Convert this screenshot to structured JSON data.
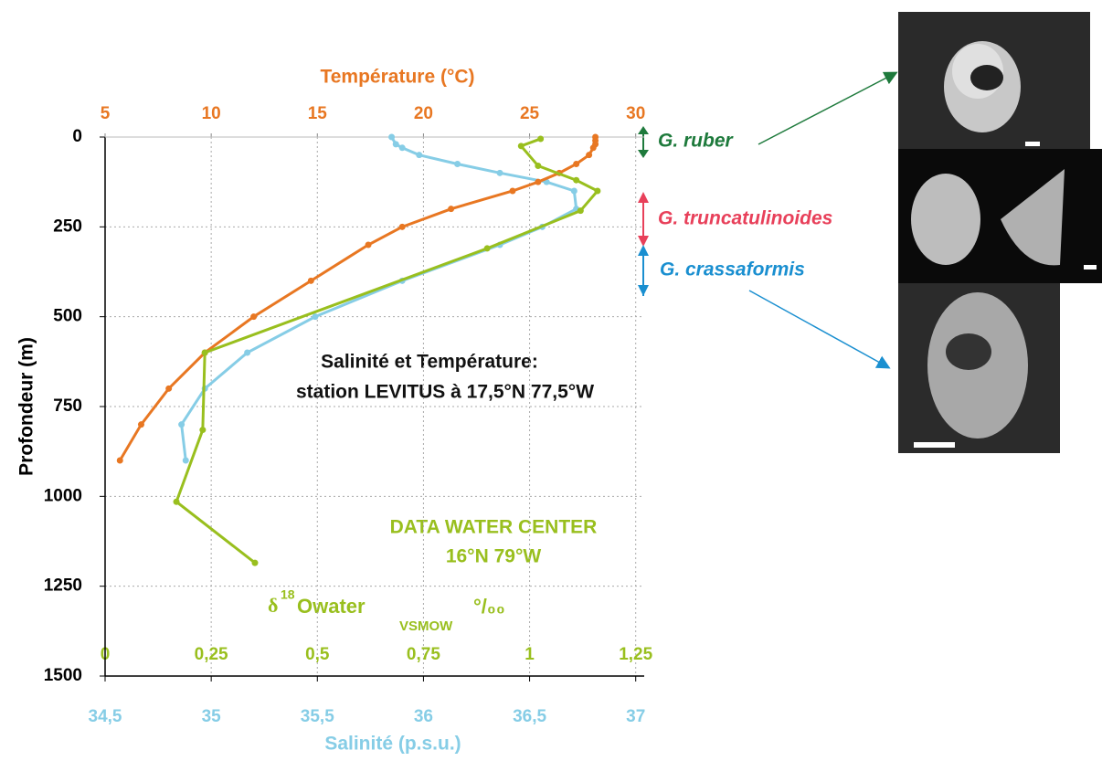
{
  "chart_data": {
    "type": "line",
    "ylabel": "Profondeur (m)",
    "ylim": [
      0,
      1500
    ],
    "yticks": [
      0,
      250,
      500,
      750,
      1000,
      1250,
      1500
    ],
    "y_inverted": true,
    "grid": true,
    "x_top": {
      "label": "Température (°C)",
      "color": "#e87722",
      "xlim": [
        5,
        30.4
      ],
      "xticks": [
        5,
        10,
        15,
        20,
        25,
        30
      ]
    },
    "x_inner": {
      "label": [
        "δ",
        "18",
        "Owater",
        "VSMOW",
        "°/₀₀"
      ],
      "color": "#99bf1e",
      "xlim": [
        0,
        1.27
      ],
      "xticks": [
        0,
        {
          "value": 0.25,
          "label": "0,25"
        },
        {
          "value": 0.5,
          "label": "0,5"
        },
        {
          "value": 0.75,
          "label": "0,75"
        },
        1,
        {
          "value": 1.25,
          "label": "1,25"
        }
      ]
    },
    "x_bottom": {
      "label": "Salinité (p.s.u.)",
      "color": "#86cde6",
      "xlim": [
        34.5,
        37.04
      ],
      "xticks": [
        {
          "value": 34.5,
          "label": "34,5"
        },
        35,
        {
          "value": 35.5,
          "label": "35,5"
        },
        36,
        {
          "value": 36.5,
          "label": "36,5"
        },
        37
      ]
    },
    "series": [
      {
        "axis": "x_bottom",
        "color": "#86cde6",
        "y": [
          0,
          20,
          30,
          50,
          75,
          100,
          125,
          150,
          200,
          250,
          300,
          400,
          500,
          600,
          700,
          800,
          900
        ],
        "values": [
          35.85,
          35.87,
          35.9,
          35.98,
          36.16,
          36.36,
          36.58,
          36.71,
          36.72,
          36.56,
          36.36,
          35.9,
          35.49,
          35.17,
          34.97,
          34.86,
          34.88
        ]
      },
      {
        "axis": "x_top",
        "color": "#e87722",
        "y": [
          0,
          10,
          20,
          30,
          50,
          75,
          100,
          125,
          150,
          200,
          250,
          300,
          400,
          500,
          600,
          700,
          800,
          900
        ],
        "values": [
          28.1,
          28.1,
          28.1,
          28.0,
          27.8,
          27.2,
          26.4,
          25.4,
          24.2,
          21.3,
          19.0,
          17.4,
          14.7,
          12.0,
          9.7,
          8.0,
          6.7,
          5.7
        ]
      },
      {
        "axis": "x_inner",
        "color": "#99bf1e",
        "y": [
          5,
          25,
          80,
          120,
          150,
          205,
          310,
          600,
          815,
          1015,
          1185
        ],
        "values": [
          1.026,
          0.98,
          1.02,
          1.11,
          1.16,
          1.12,
          0.9,
          0.235,
          0.23,
          0.168,
          0.353
        ]
      }
    ],
    "annotations": {
      "station": [
        "Salinité et Température:",
        "station LEVITUS à 17,5°N 77,5°W"
      ],
      "data_center": [
        "DATA WATER CENTER",
        "16°N 79°W"
      ]
    },
    "species": [
      {
        "name": "G. ruber",
        "color": "#1e7a3c"
      },
      {
        "name": "G. truncatulinoides",
        "color": "#e8405a"
      },
      {
        "name": "G. crassaformis",
        "color": "#1a8fd0"
      }
    ]
  }
}
